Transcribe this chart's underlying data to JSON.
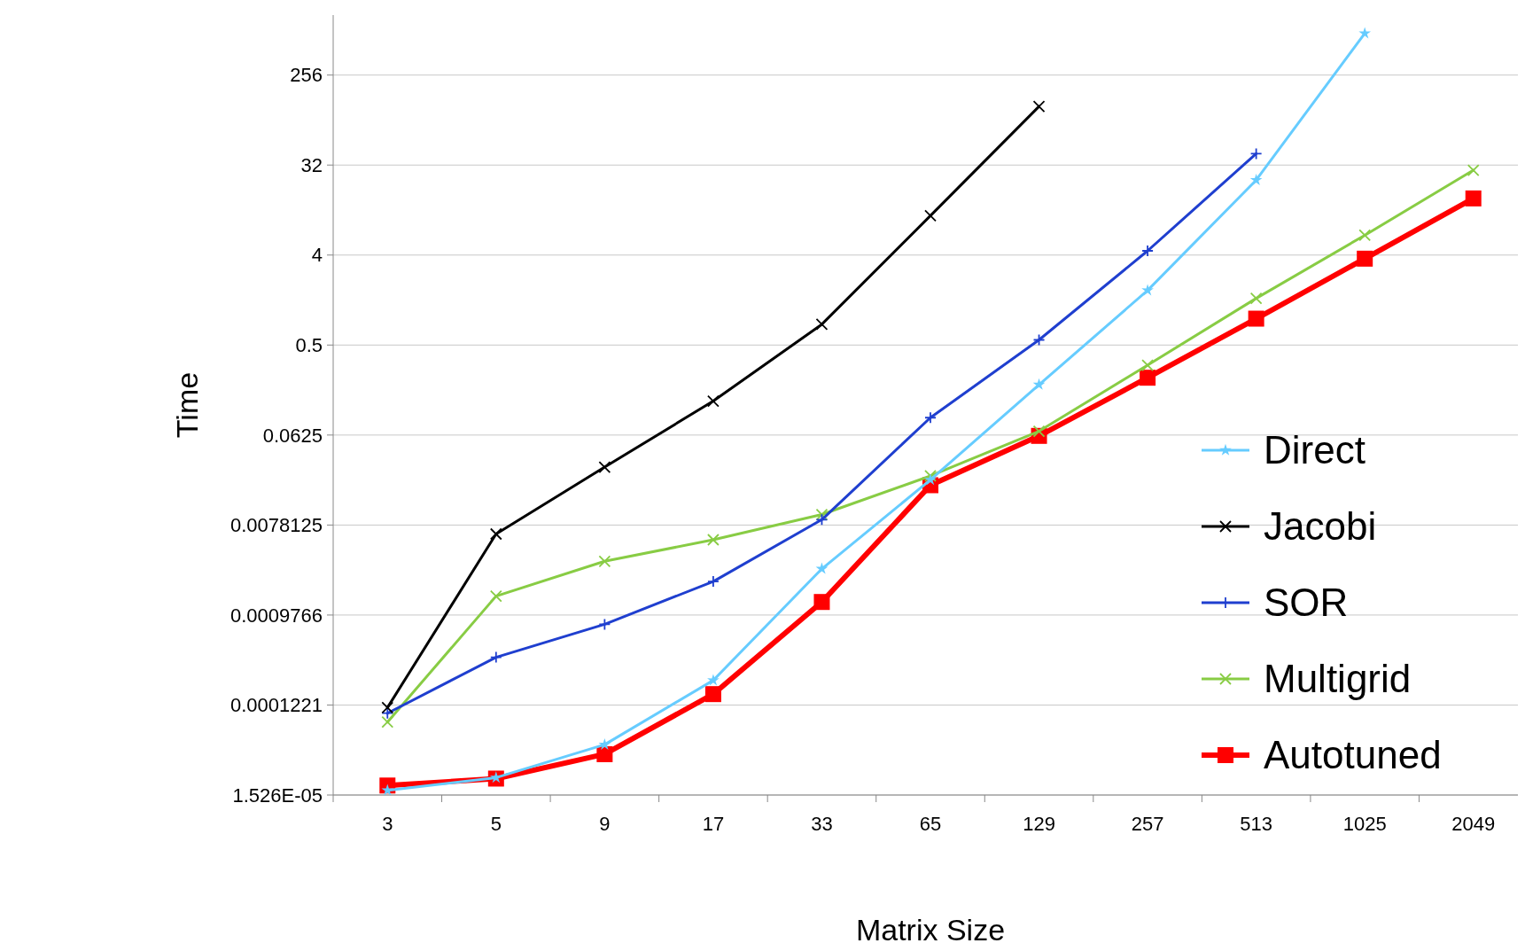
{
  "chart_data": {
    "type": "line",
    "xlabel": "Matrix Size",
    "ylabel": "Time",
    "categories": [
      "3",
      "5",
      "9",
      "17",
      "33",
      "65",
      "129",
      "257",
      "513",
      "1025",
      "2049"
    ],
    "log": "y",
    "grid": "y",
    "legend": "right",
    "ylim": [
      1.52587890625e-05,
      1024
    ],
    "yticks": [
      {
        "value": 1.52587890625e-05,
        "label": "1.526E-05"
      },
      {
        "value": 0.0001220703125,
        "label": "0.0001221"
      },
      {
        "value": 0.0009765625,
        "label": "0.0009766"
      },
      0.0078125,
      0.0625,
      0.5,
      4,
      32,
      256
    ],
    "series": [
      {
        "name": "Direct",
        "color": "#66ccff",
        "marker": "star",
        "values": [
          1.7e-05,
          2.28e-05,
          4.89e-05,
          0.000216,
          0.00284,
          0.0222,
          0.2,
          1.77,
          22.6,
          671,
          null
        ]
      },
      {
        "name": "Jacobi",
        "color": "#000000",
        "marker": "cross",
        "values": [
          0.000115,
          0.00635,
          0.0298,
          0.137,
          0.807,
          9.92,
          124,
          null,
          null,
          null,
          null
        ]
      },
      {
        "name": "SOR",
        "color": "#1f3fcf",
        "marker": "plus",
        "values": [
          0.000101,
          0.000368,
          0.000788,
          0.00212,
          0.00885,
          0.0934,
          0.563,
          4.41,
          41.6,
          null,
          null
        ]
      },
      {
        "name": "Multigrid",
        "color": "#88cc44",
        "marker": "cross",
        "values": [
          8.23e-05,
          0.00151,
          0.00338,
          0.00556,
          0.00996,
          0.0243,
          0.0683,
          0.314,
          1.47,
          6.32,
          28.4
        ]
      },
      {
        "name": "Autotuned",
        "color": "#ff0000",
        "marker": "square",
        "values": [
          1.9e-05,
          2.23e-05,
          3.92e-05,
          0.000157,
          0.00132,
          0.0196,
          0.0613,
          0.235,
          0.92,
          3.68,
          14.8
        ]
      }
    ]
  }
}
